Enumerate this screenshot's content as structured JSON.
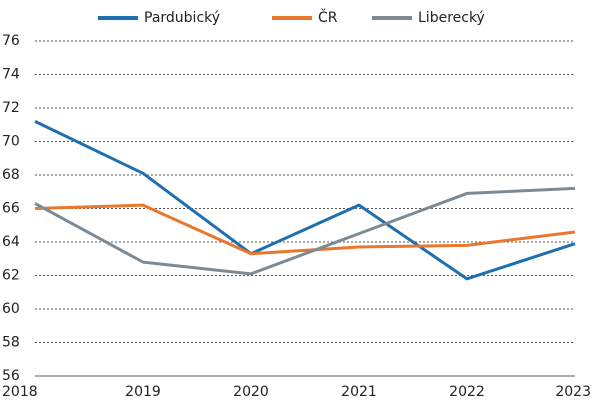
{
  "chart_data": {
    "type": "line",
    "categories": [
      "2018",
      "2019",
      "2020",
      "2021",
      "2022",
      "2023"
    ],
    "series": [
      {
        "name": "Pardubický",
        "color": "#1f6eb0",
        "values": [
          71.2,
          68.1,
          63.3,
          66.2,
          61.8,
          63.9
        ]
      },
      {
        "name": "ČR",
        "color": "#e8782e",
        "values": [
          66.0,
          66.2,
          63.3,
          63.7,
          63.8,
          64.6
        ]
      },
      {
        "name": "Liberecký",
        "color": "#7d8a94",
        "values": [
          66.3,
          62.8,
          62.1,
          64.5,
          66.9,
          67.2
        ]
      }
    ],
    "ylim": [
      56,
      76
    ],
    "yticks": [
      56,
      58,
      60,
      62,
      64,
      66,
      68,
      70,
      72,
      74,
      76
    ],
    "grid": true,
    "legend": "top"
  }
}
